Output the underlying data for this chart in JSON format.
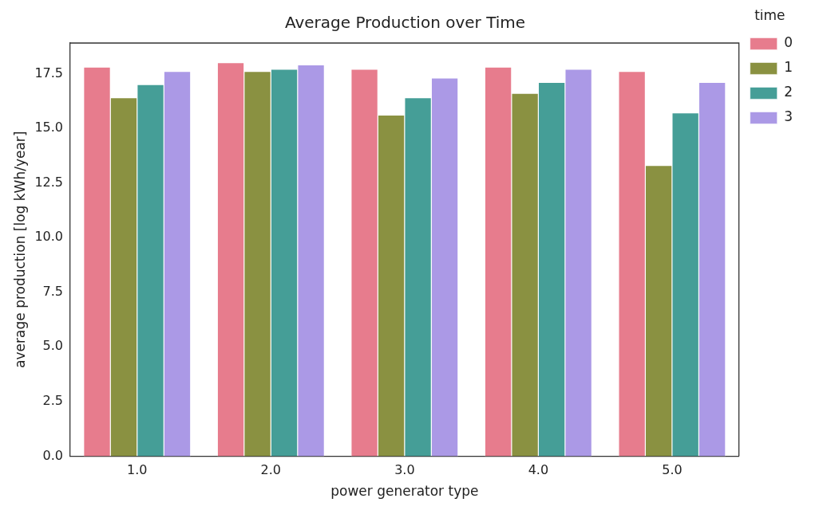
{
  "chart_data": {
    "type": "bar",
    "title": "Average Production over Time",
    "xlabel": "power generator type",
    "ylabel": "average production [log kWh/year]",
    "legend_title": "time",
    "categories": [
      "1.0",
      "2.0",
      "3.0",
      "4.0",
      "5.0"
    ],
    "series": [
      {
        "name": "0",
        "color": "#e77c8d",
        "values": [
          17.8,
          18.0,
          17.7,
          17.8,
          17.6
        ]
      },
      {
        "name": "1",
        "color": "#8a9141",
        "values": [
          16.4,
          17.6,
          15.6,
          16.6,
          13.3
        ]
      },
      {
        "name": "2",
        "color": "#459e97",
        "values": [
          17.0,
          17.7,
          16.4,
          17.1,
          15.7
        ]
      },
      {
        "name": "3",
        "color": "#ab99e6",
        "values": [
          17.6,
          17.9,
          17.3,
          17.7,
          17.1
        ]
      }
    ],
    "ylim": [
      0,
      18.9
    ],
    "yticks": [
      {
        "value": 0,
        "label": "0.0"
      },
      {
        "value": 2.5,
        "label": "2.5"
      },
      {
        "value": 5,
        "label": "5.0"
      },
      {
        "value": 7.5,
        "label": "7.5"
      },
      {
        "value": 10,
        "label": "10.0"
      },
      {
        "value": 12.5,
        "label": "12.5"
      },
      {
        "value": 15,
        "label": "15.0"
      },
      {
        "value": 17.5,
        "label": "17.5"
      }
    ],
    "grid": false,
    "legend": "right"
  }
}
